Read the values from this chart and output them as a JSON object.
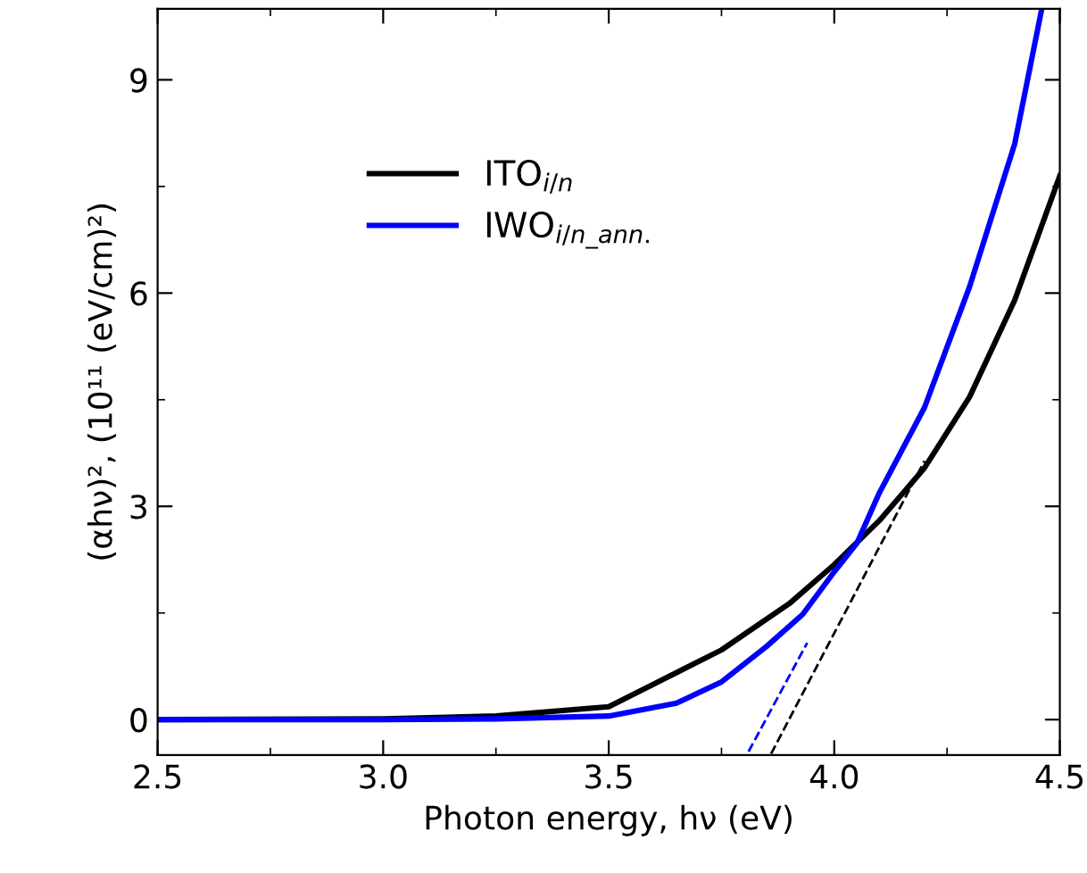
{
  "chart_data": {
    "type": "line",
    "xlabel": "Photon energy, hν (eV)",
    "ylabel": "(αhν)², (10¹¹ (eV/cm)²)",
    "xlim": [
      2.5,
      4.5
    ],
    "ylim": [
      -0.5,
      10
    ],
    "xticks": [
      2.5,
      {
        "value": 3,
        "label": "3.0"
      },
      3.5,
      {
        "value": 4,
        "label": "4.0"
      },
      4.5
    ],
    "yticks": [
      0,
      3,
      6,
      9
    ],
    "grid": false,
    "legend": "top left",
    "line_style": "solid",
    "marker": "none",
    "series": [
      {
        "name": "ITO$_{i/n}$",
        "color": "#000000",
        "x": [
          2.5,
          3.0,
          3.25,
          3.5,
          3.75,
          3.9,
          4.0,
          4.1,
          4.2,
          4.3,
          4.4,
          4.5
        ],
        "values": [
          0,
          0.01,
          0.05,
          0.18,
          0.98,
          1.63,
          2.18,
          2.8,
          3.54,
          4.54,
          5.9,
          7.65
        ]
      },
      {
        "name": "IWO$_{i/n_ann.}$",
        "color": "#0000ff",
        "x": [
          2.5,
          3.0,
          3.25,
          3.5,
          3.65,
          3.75,
          3.85,
          3.93,
          4.0,
          4.05,
          4.1,
          4.2,
          4.3,
          4.4,
          4.46
        ],
        "values": [
          0,
          0,
          0.01,
          0.05,
          0.23,
          0.53,
          1.03,
          1.48,
          2.08,
          2.48,
          3.19,
          4.39,
          6.09,
          8.1,
          10.0
        ]
      },
      {
        "type": "line",
        "color": "#0000ff",
        "line_style": "dashed",
        "x": [
          3.81,
          3.94
        ],
        "values": [
          -0.45,
          1.08
        ]
      },
      {
        "type": "line",
        "color": "#000000",
        "line_style": "dashed",
        "x": [
          3.86,
          4.2
        ],
        "values": [
          -0.48,
          3.64
        ]
      }
    ]
  }
}
